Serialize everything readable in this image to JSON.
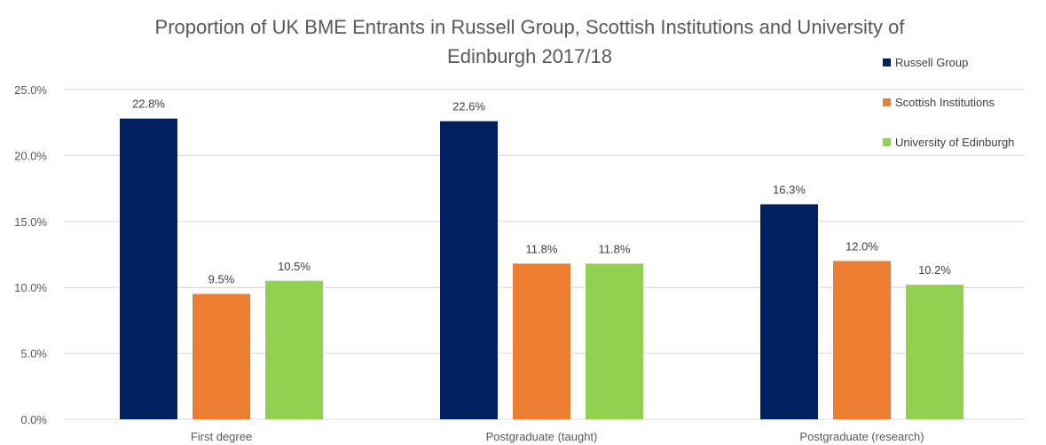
{
  "chart_data": {
    "type": "bar",
    "title_line1": "Proportion of UK BME Entrants in Russell Group, Scottish Institutions and University of",
    "title_line2": "Edinburgh 2017/18",
    "categories": [
      "First degree",
      "Postgraduate (taught)",
      "Postgraduate (research)"
    ],
    "series": [
      {
        "name": "Russell Group",
        "color": "#002060",
        "values": [
          22.8,
          22.6,
          16.3
        ],
        "labels": [
          "22.8%",
          "22.6%",
          "16.3%"
        ]
      },
      {
        "name": "Scottish Institutions",
        "color": "#ED7D31",
        "values": [
          9.5,
          11.8,
          12.0
        ],
        "labels": [
          "9.5%",
          "11.8%",
          "12.0%"
        ]
      },
      {
        "name": "University of Edinburgh",
        "color": "#92D050",
        "values": [
          10.5,
          11.8,
          10.2
        ],
        "labels": [
          "10.5%",
          "11.8%",
          "10.2%"
        ]
      }
    ],
    "ylim": [
      0,
      25
    ],
    "yticks": [
      0,
      5,
      10,
      15,
      20,
      25
    ],
    "ytick_labels": [
      "0.0%",
      "5.0%",
      "10.0%",
      "15.0%",
      "20.0%",
      "25.0%"
    ],
    "grid": true,
    "legend_position": "top-right"
  }
}
